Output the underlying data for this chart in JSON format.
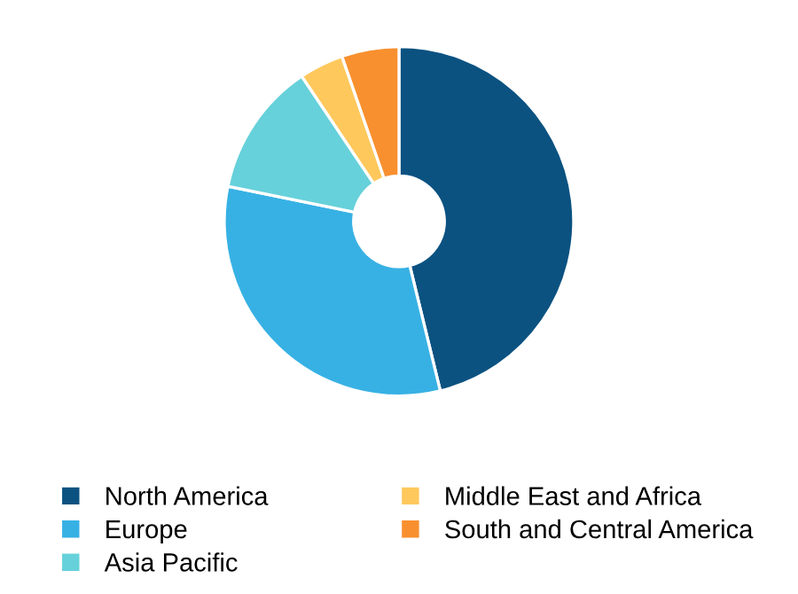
{
  "chart_data": {
    "type": "donut",
    "categories": [
      "North America",
      "Europe",
      "Asia Pacific",
      "Middle East and Africa",
      "South and Central America"
    ],
    "values": [
      46.2,
      32,
      12.4,
      4.1,
      5.3
    ],
    "colors": [
      "#0b5281",
      "#37b1e4",
      "#66d1da",
      "#fec85c",
      "#f8902f"
    ],
    "legend": "bottom"
  }
}
